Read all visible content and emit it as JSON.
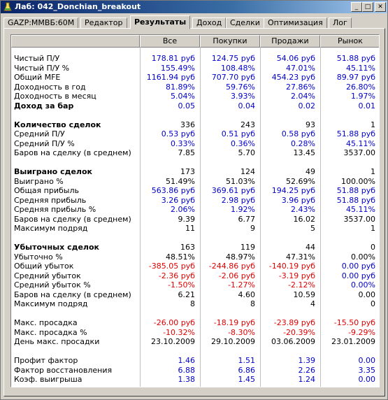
{
  "window": {
    "title": "Лаб: 042_Donchian_breakout",
    "min": "_",
    "max": "□",
    "close": "✕"
  },
  "tabs": [
    "GAZP:MMBБ:60M",
    "Редактор",
    "Результаты",
    "Доход",
    "Сделки",
    "Оптимизация",
    "Лог"
  ],
  "active_tab": 2,
  "columns": [
    "Все",
    "Покупки",
    "Продажи",
    "Рынок"
  ],
  "colors": {
    "positive": "#0000cc",
    "negative": "#e00000",
    "neutral": "#000000"
  },
  "rows": [
    {
      "label": "Чистый П/У",
      "values": [
        "178.81 руб",
        "124.75 руб",
        "54.06 руб",
        "51.88 руб"
      ],
      "colors": [
        "blue",
        "blue",
        "blue",
        "blue"
      ]
    },
    {
      "label": "Чистый П/У %",
      "values": [
        "155.49%",
        "108.48%",
        "47.01%",
        "45.11%"
      ],
      "colors": [
        "blue",
        "blue",
        "blue",
        "blue"
      ]
    },
    {
      "label": "Общий MFE",
      "values": [
        "1161.94 руб",
        "707.70 руб",
        "454.23 руб",
        "89.97 руб"
      ],
      "colors": [
        "blue",
        "blue",
        "blue",
        "blue"
      ]
    },
    {
      "label": "Доходность в год",
      "values": [
        "81.89%",
        "59.76%",
        "27.86%",
        "26.80%"
      ],
      "colors": [
        "blue",
        "blue",
        "blue",
        "blue"
      ]
    },
    {
      "label": "Доходность в месяц",
      "values": [
        "5.04%",
        "3.93%",
        "2.04%",
        "1.97%"
      ],
      "colors": [
        "blue",
        "blue",
        "blue",
        "blue"
      ]
    },
    {
      "label": "Доход за бар",
      "bold": true,
      "values": [
        "0.05",
        "0.04",
        "0.02",
        "0.01"
      ],
      "colors": [
        "blue",
        "blue",
        "blue",
        "blue"
      ]
    },
    {
      "label": "",
      "values": [
        "",
        "",
        "",
        ""
      ]
    },
    {
      "label": "Количество сделок",
      "bold": true,
      "values": [
        "336",
        "243",
        "93",
        "1"
      ],
      "colors": [
        "black",
        "black",
        "black",
        "black"
      ]
    },
    {
      "label": "Средний П/У",
      "values": [
        "0.53 руб",
        "0.51 руб",
        "0.58 руб",
        "51.88 руб"
      ],
      "colors": [
        "blue",
        "blue",
        "blue",
        "blue"
      ]
    },
    {
      "label": "Средний П/У %",
      "values": [
        "0.33%",
        "0.36%",
        "0.28%",
        "45.11%"
      ],
      "colors": [
        "blue",
        "blue",
        "blue",
        "blue"
      ]
    },
    {
      "label": "Баров на сделку (в среднем)",
      "values": [
        "7.85",
        "5.70",
        "13.45",
        "3537.00"
      ],
      "colors": [
        "black",
        "black",
        "black",
        "black"
      ]
    },
    {
      "label": "",
      "values": [
        "",
        "",
        "",
        ""
      ]
    },
    {
      "label": "Выиграно сделок",
      "bold": true,
      "values": [
        "173",
        "124",
        "49",
        "1"
      ],
      "colors": [
        "black",
        "black",
        "black",
        "black"
      ]
    },
    {
      "label": "Выиграно %",
      "values": [
        "51.49%",
        "51.03%",
        "52.69%",
        "100.00%"
      ],
      "colors": [
        "black",
        "black",
        "black",
        "black"
      ]
    },
    {
      "label": "Общая прибыль",
      "values": [
        "563.86 руб",
        "369.61 руб",
        "194.25 руб",
        "51.88 руб"
      ],
      "colors": [
        "blue",
        "blue",
        "blue",
        "blue"
      ]
    },
    {
      "label": "Средняя прибыль",
      "values": [
        "3.26 руб",
        "2.98 руб",
        "3.96 руб",
        "51.88 руб"
      ],
      "colors": [
        "blue",
        "blue",
        "blue",
        "blue"
      ]
    },
    {
      "label": "Средняя прибыль %",
      "values": [
        "2.06%",
        "1.92%",
        "2.43%",
        "45.11%"
      ],
      "colors": [
        "blue",
        "blue",
        "blue",
        "blue"
      ]
    },
    {
      "label": "Баров на сделку (в среднем)",
      "values": [
        "9.39",
        "6.77",
        "16.02",
        "3537.00"
      ],
      "colors": [
        "black",
        "black",
        "black",
        "black"
      ]
    },
    {
      "label": "Максимум подряд",
      "values": [
        "11",
        "9",
        "5",
        "1"
      ],
      "colors": [
        "black",
        "black",
        "black",
        "black"
      ]
    },
    {
      "label": "",
      "values": [
        "",
        "",
        "",
        ""
      ]
    },
    {
      "label": "Убыточных сделок",
      "bold": true,
      "values": [
        "163",
        "119",
        "44",
        "0"
      ],
      "colors": [
        "black",
        "black",
        "black",
        "black"
      ]
    },
    {
      "label": "Убыточно %",
      "values": [
        "48.51%",
        "48.97%",
        "47.31%",
        "0.00%"
      ],
      "colors": [
        "black",
        "black",
        "black",
        "black"
      ]
    },
    {
      "label": "Общий убыток",
      "values": [
        "-385.05 руб",
        "-244.86 руб",
        "-140.19 руб",
        "0.00 руб"
      ],
      "colors": [
        "red",
        "red",
        "red",
        "blue"
      ]
    },
    {
      "label": "Средний убыток",
      "values": [
        "-2.36 руб",
        "-2.06 руб",
        "-3.19 руб",
        "0.00 руб"
      ],
      "colors": [
        "red",
        "red",
        "red",
        "blue"
      ]
    },
    {
      "label": "Средний убыток %",
      "values": [
        "-1.50%",
        "-1.27%",
        "-2.12%",
        "0.00%"
      ],
      "colors": [
        "red",
        "red",
        "red",
        "blue"
      ]
    },
    {
      "label": "Баров на сделку (в среднем)",
      "values": [
        "6.21",
        "4.60",
        "10.59",
        "0.00"
      ],
      "colors": [
        "black",
        "black",
        "black",
        "black"
      ]
    },
    {
      "label": "Максимум подряд",
      "values": [
        "8",
        "8",
        "4",
        "0"
      ],
      "colors": [
        "black",
        "black",
        "black",
        "black"
      ]
    },
    {
      "label": "",
      "values": [
        "",
        "",
        "",
        ""
      ]
    },
    {
      "label": "Макс. просадка",
      "values": [
        "-26.00 руб",
        "-18.19 руб",
        "-23.89 руб",
        "-15.50 руб"
      ],
      "colors": [
        "red",
        "red",
        "red",
        "red"
      ]
    },
    {
      "label": "Макс. просадка %",
      "values": [
        "-10.32%",
        "-8.30%",
        "-20.39%",
        "-9.29%"
      ],
      "colors": [
        "red",
        "red",
        "red",
        "red"
      ]
    },
    {
      "label": "День макс. просадки",
      "values": [
        "23.10.2009",
        "29.10.2009",
        "03.06.2009",
        "23.01.2009"
      ],
      "colors": [
        "black",
        "black",
        "black",
        "black"
      ]
    },
    {
      "label": "",
      "values": [
        "",
        "",
        "",
        ""
      ]
    },
    {
      "label": "Профит фактор",
      "values": [
        "1.46",
        "1.51",
        "1.39",
        "0.00"
      ],
      "colors": [
        "blue",
        "blue",
        "blue",
        "blue"
      ]
    },
    {
      "label": "Фактор восстановления",
      "values": [
        "6.88",
        "6.86",
        "2.26",
        "3.35"
      ],
      "colors": [
        "blue",
        "blue",
        "blue",
        "blue"
      ]
    },
    {
      "label": "Коэф. выигрыша",
      "values": [
        "1.38",
        "1.45",
        "1.24",
        "0.00"
      ],
      "colors": [
        "blue",
        "blue",
        "blue",
        "blue"
      ]
    }
  ]
}
